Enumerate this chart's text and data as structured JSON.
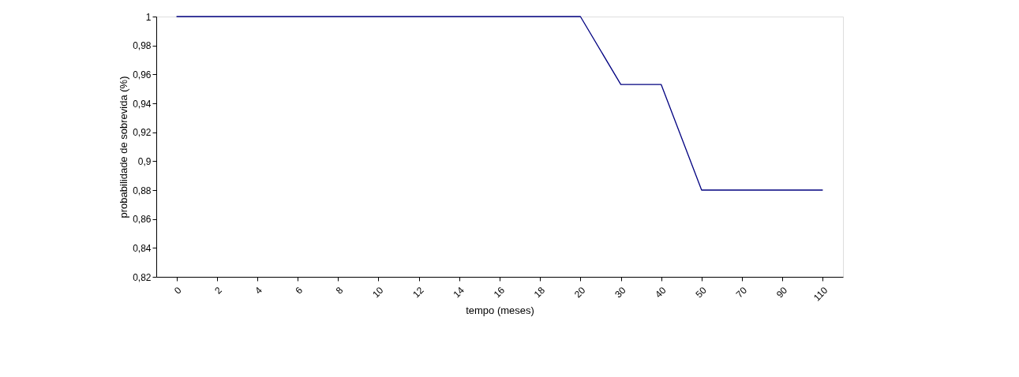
{
  "chart_data": {
    "type": "line",
    "xlabel": "tempo (meses)",
    "ylabel": "probabilidade de sobrevida (%)",
    "categories": [
      "0",
      "2",
      "4",
      "6",
      "8",
      "10",
      "12",
      "14",
      "16",
      "18",
      "20",
      "30",
      "40",
      "50",
      "70",
      "90",
      "110"
    ],
    "series": [
      {
        "color": "#000080",
        "values": [
          1,
          1,
          1,
          1,
          1,
          1,
          1,
          1,
          1,
          1,
          1,
          0.953,
          0.953,
          0.88,
          0.88,
          0.88,
          0.88
        ]
      }
    ],
    "ylim": [
      0.82,
      1
    ],
    "yticks": [
      {
        "value": 0.82,
        "label": "0,82"
      },
      {
        "value": 0.84,
        "label": "0,84"
      },
      {
        "value": 0.86,
        "label": "0,86"
      },
      {
        "value": 0.88,
        "label": "0,88"
      },
      {
        "value": 0.9,
        "label": "0,9"
      },
      {
        "value": 0.92,
        "label": "0,92"
      },
      {
        "value": 0.94,
        "label": "0,94"
      },
      {
        "value": 0.96,
        "label": "0,96"
      },
      {
        "value": 0.98,
        "label": "0,98"
      },
      {
        "value": 1,
        "label": "1"
      }
    ],
    "grid": false,
    "marker": "none",
    "line_style": "solid"
  }
}
